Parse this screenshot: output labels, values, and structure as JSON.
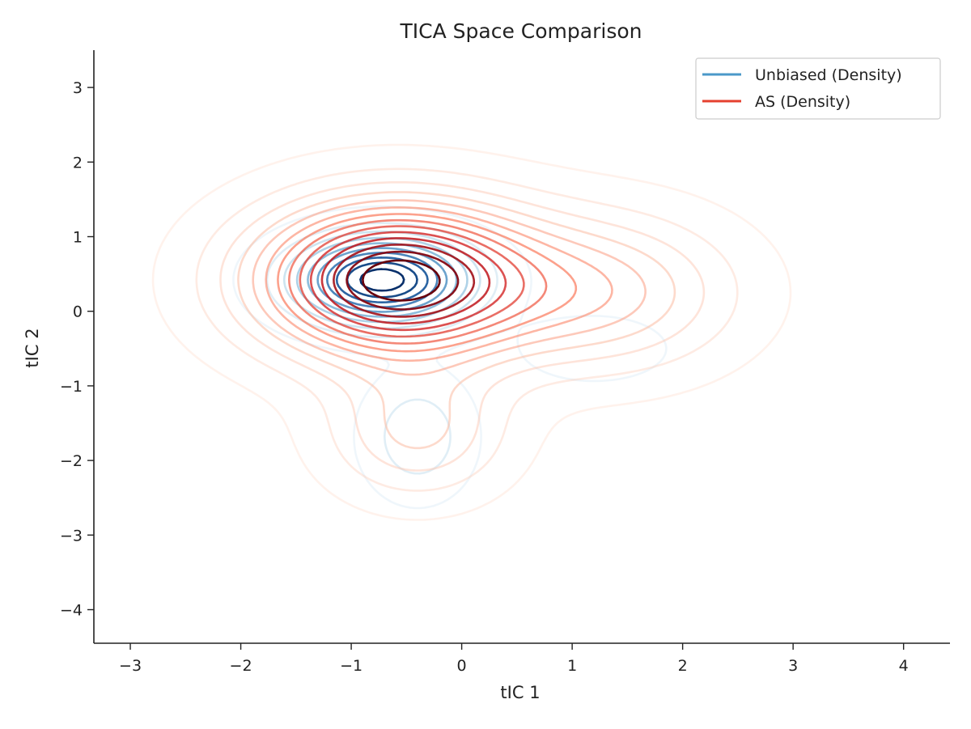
{
  "chart_data": {
    "type": "contour",
    "title": "TICA Space Comparison",
    "xlabel": "tIC 1",
    "ylabel": "tIC 2",
    "xlim": [
      -3.33,
      4.42
    ],
    "ylim": [
      -4.45,
      3.5
    ],
    "xticks": [
      -3,
      -2,
      -1,
      0,
      1,
      2,
      3,
      4
    ],
    "yticks": [
      -4,
      -3,
      -2,
      -1,
      0,
      1,
      2,
      3
    ],
    "xtick_labels": [
      "−3",
      "−2",
      "−1",
      "0",
      "1",
      "2",
      "3",
      "4"
    ],
    "ytick_labels": [
      "−4",
      "−3",
      "−2",
      "−1",
      "0",
      "1",
      "2",
      "3"
    ],
    "grid": false,
    "legend_position": "top-right",
    "series": [
      {
        "name": "Unbiased (Density)",
        "legend_color": "#4a98c9",
        "colormap": "Blues",
        "levels": 10,
        "components": [
          {
            "weight": 1.0,
            "mean": [
              -0.72,
              0.42
            ],
            "std": [
              0.52,
              0.38
            ]
          },
          {
            "weight": 0.22,
            "mean": [
              -0.4,
              -1.68
            ],
            "std": [
              0.3,
              0.5
            ]
          },
          {
            "weight": 0.1,
            "mean": [
              1.2,
              -0.5
            ],
            "std": [
              0.45,
              0.3
            ]
          }
        ]
      },
      {
        "name": "AS (Density)",
        "legend_color": "#e5402f",
        "colormap": "Reds",
        "levels": 14,
        "components": [
          {
            "weight": 1.0,
            "mean": [
              -0.6,
              0.42
            ],
            "std": [
              0.85,
              0.7
            ]
          },
          {
            "weight": 0.32,
            "mean": [
              1.3,
              0.25
            ],
            "std": [
              0.8,
              0.7
            ]
          },
          {
            "weight": 0.26,
            "mean": [
              -0.4,
              -1.6
            ],
            "std": [
              0.55,
              0.6
            ]
          }
        ]
      }
    ]
  }
}
